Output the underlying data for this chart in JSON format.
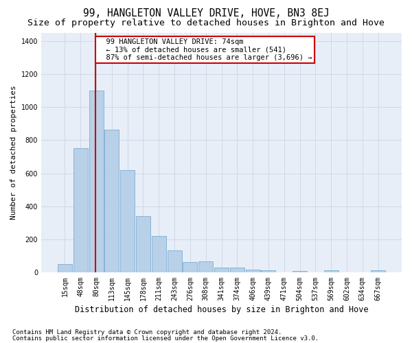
{
  "title": "99, HANGLETON VALLEY DRIVE, HOVE, BN3 8EJ",
  "subtitle": "Size of property relative to detached houses in Brighton and Hove",
  "xlabel": "Distribution of detached houses by size in Brighton and Hove",
  "ylabel": "Number of detached properties",
  "bar_values": [
    50,
    750,
    1100,
    865,
    620,
    340,
    220,
    135,
    65,
    70,
    30,
    30,
    20,
    15,
    0,
    10,
    0,
    15,
    0,
    0,
    15
  ],
  "bar_labels": [
    "15sqm",
    "48sqm",
    "80sqm",
    "113sqm",
    "145sqm",
    "178sqm",
    "211sqm",
    "243sqm",
    "276sqm",
    "308sqm",
    "341sqm",
    "374sqm",
    "406sqm",
    "439sqm",
    "471sqm",
    "504sqm",
    "537sqm",
    "569sqm",
    "602sqm",
    "634sqm",
    "667sqm"
  ],
  "bar_color": "#b8d0e8",
  "bar_edge_color": "#7bafd4",
  "property_line_x": 1.95,
  "property_label": "99 HANGLETON VALLEY DRIVE: 74sqm",
  "smaller_text": "← 13% of detached houses are smaller (541)",
  "larger_text": "87% of semi-detached houses are larger (3,696) →",
  "annotation_box_facecolor": "#ffffff",
  "annotation_box_edgecolor": "#cc0000",
  "vline_color": "#cc0000",
  "ylim": [
    0,
    1450
  ],
  "yticks": [
    0,
    200,
    400,
    600,
    800,
    1000,
    1200,
    1400
  ],
  "grid_color": "#d0d8e8",
  "plot_bg_color": "#e8eef8",
  "fig_bg_color": "#ffffff",
  "footnote1": "Contains HM Land Registry data © Crown copyright and database right 2024.",
  "footnote2": "Contains public sector information licensed under the Open Government Licence v3.0.",
  "title_fontsize": 10.5,
  "subtitle_fontsize": 9.5,
  "ylabel_fontsize": 8,
  "xlabel_fontsize": 8.5,
  "tick_fontsize": 7,
  "annot_fontsize": 7.5,
  "footnote_fontsize": 6.5
}
